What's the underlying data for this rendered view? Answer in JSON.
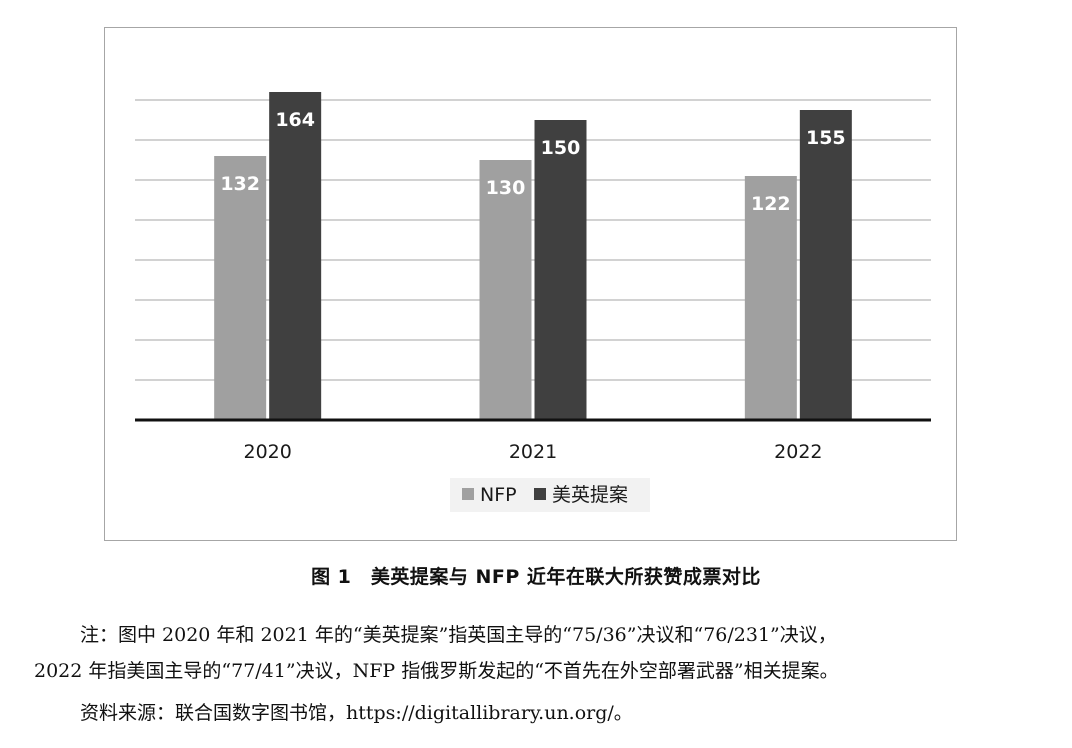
{
  "chart_data": {
    "type": "bar",
    "categories": [
      "2020",
      "2021",
      "2022"
    ],
    "series": [
      {
        "name": "NFP",
        "values": [
          132,
          130,
          122
        ],
        "color": "#a0a0a0"
      },
      {
        "name": "美英提案",
        "values": [
          164,
          150,
          155
        ],
        "color": "#404040"
      }
    ],
    "data_labels": true,
    "y_axis_visible": false,
    "grid": "horizontal",
    "legend_position": "bottom"
  },
  "caption": "图 1　美英提案与 NFP 近年在联大所获赞成票对比",
  "note": {
    "line1": "注：图中 2020 年和 2021 年的“美英提案”指英国主导的“75/36”决议和“76/231”决议，",
    "line2": "2022 年指美国主导的“77/41”决议，NFP 指俄罗斯发起的“不首先在外空部署武器”相关提案。"
  },
  "source": "资料来源：联合国数字图书馆，https://digitallibrary.un.org/。"
}
